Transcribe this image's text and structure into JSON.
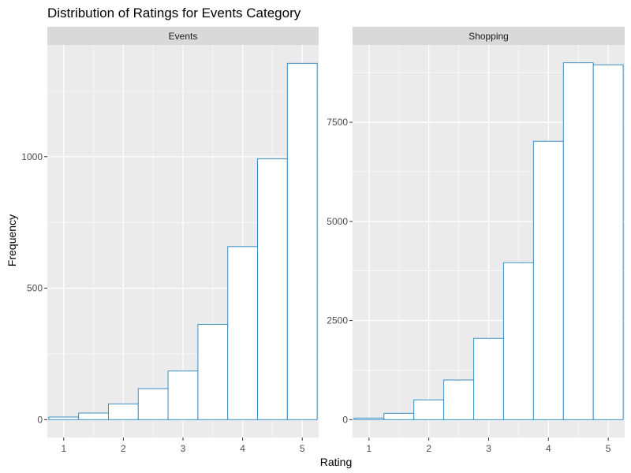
{
  "chart_data": {
    "type": "bar",
    "title": "Distribution of Ratings for Events Category",
    "xlabel": "Rating",
    "ylabel": "Frequency",
    "grid": true,
    "legend": "none",
    "bar_stroke_color": "#3b8fc4",
    "bar_fill_color": "#ffffff",
    "panel_background": "#ebebeb",
    "strip_background": "#d9d9d9",
    "bin_width": 0.5,
    "x_ticks": [
      1,
      2,
      3,
      4,
      5
    ],
    "panels": [
      {
        "name": "Events",
        "xlim": [
          0.725,
          5.275
        ],
        "ylim": [
          -68,
          1425
        ],
        "y_ticks": [
          0,
          500,
          1000
        ],
        "bins": [
          {
            "x0": 0.75,
            "x1": 1.25,
            "count": 10
          },
          {
            "x0": 1.25,
            "x1": 1.75,
            "count": 25
          },
          {
            "x0": 1.75,
            "x1": 2.25,
            "count": 60
          },
          {
            "x0": 2.25,
            "x1": 2.75,
            "count": 118
          },
          {
            "x0": 2.75,
            "x1": 3.25,
            "count": 185
          },
          {
            "x0": 3.25,
            "x1": 3.75,
            "count": 362
          },
          {
            "x0": 3.75,
            "x1": 4.25,
            "count": 658
          },
          {
            "x0": 4.25,
            "x1": 4.75,
            "count": 992
          },
          {
            "x0": 4.75,
            "x1": 5.25,
            "count": 1355
          }
        ]
      },
      {
        "name": "Shopping",
        "xlim": [
          0.725,
          5.275
        ],
        "ylim": [
          -450,
          9450
        ],
        "y_ticks": [
          0,
          2500,
          5000,
          7500
        ],
        "bins": [
          {
            "x0": 0.75,
            "x1": 1.25,
            "count": 40
          },
          {
            "x0": 1.25,
            "x1": 1.75,
            "count": 160
          },
          {
            "x0": 1.75,
            "x1": 2.25,
            "count": 500
          },
          {
            "x0": 2.25,
            "x1": 2.75,
            "count": 1000
          },
          {
            "x0": 2.75,
            "x1": 3.25,
            "count": 2050
          },
          {
            "x0": 3.25,
            "x1": 3.75,
            "count": 3960
          },
          {
            "x0": 3.75,
            "x1": 4.25,
            "count": 7020
          },
          {
            "x0": 4.25,
            "x1": 4.75,
            "count": 9000
          },
          {
            "x0": 4.75,
            "x1": 5.25,
            "count": 8950
          }
        ]
      }
    ]
  }
}
